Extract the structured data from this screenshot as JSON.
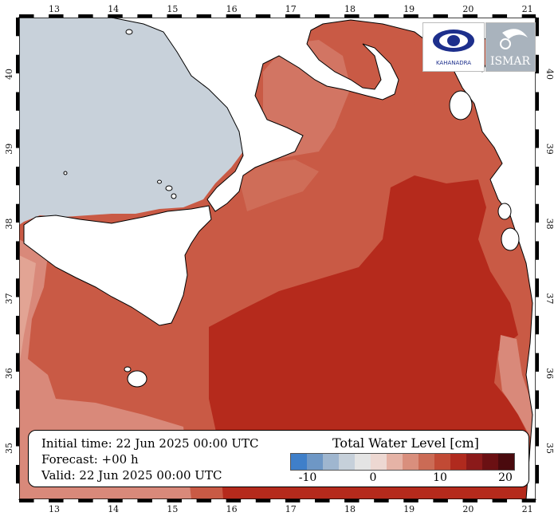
{
  "map": {
    "lon_ticks": [
      "13",
      "14",
      "15",
      "16",
      "17",
      "18",
      "19",
      "20",
      "21"
    ],
    "lat_ticks": [
      "35",
      "36",
      "37",
      "38",
      "39",
      "40"
    ]
  },
  "info": {
    "initial_time": "Initial time: 22 Jun 2025 00:00 UTC",
    "forecast": "Forecast: +00 h",
    "valid": "Valid: 22 Jun 2025 00:00 UTC"
  },
  "legend": {
    "title": "Total Water Level [cm]",
    "tick_labels": [
      "-10",
      "0",
      "10",
      "20"
    ],
    "colors": [
      "#3f7fc9",
      "#6e97c5",
      "#9fb6cf",
      "#c6d0da",
      "#e4e4e4",
      "#edd8d2",
      "#e5b3a6",
      "#d98f7d",
      "#cb6b55",
      "#c14a35",
      "#b02a1e",
      "#8b1a1a",
      "#6b1013",
      "#4a0a0e"
    ]
  },
  "logos": {
    "left_text": "KAHANADRA",
    "right_text": "ISMAR"
  },
  "colors": {
    "land": "#ffffff",
    "cold_sea": "#c8d1da",
    "sea_light": "#d9897a",
    "sea_mid": "#c95a45",
    "sea_deep": "#b52a1c"
  }
}
